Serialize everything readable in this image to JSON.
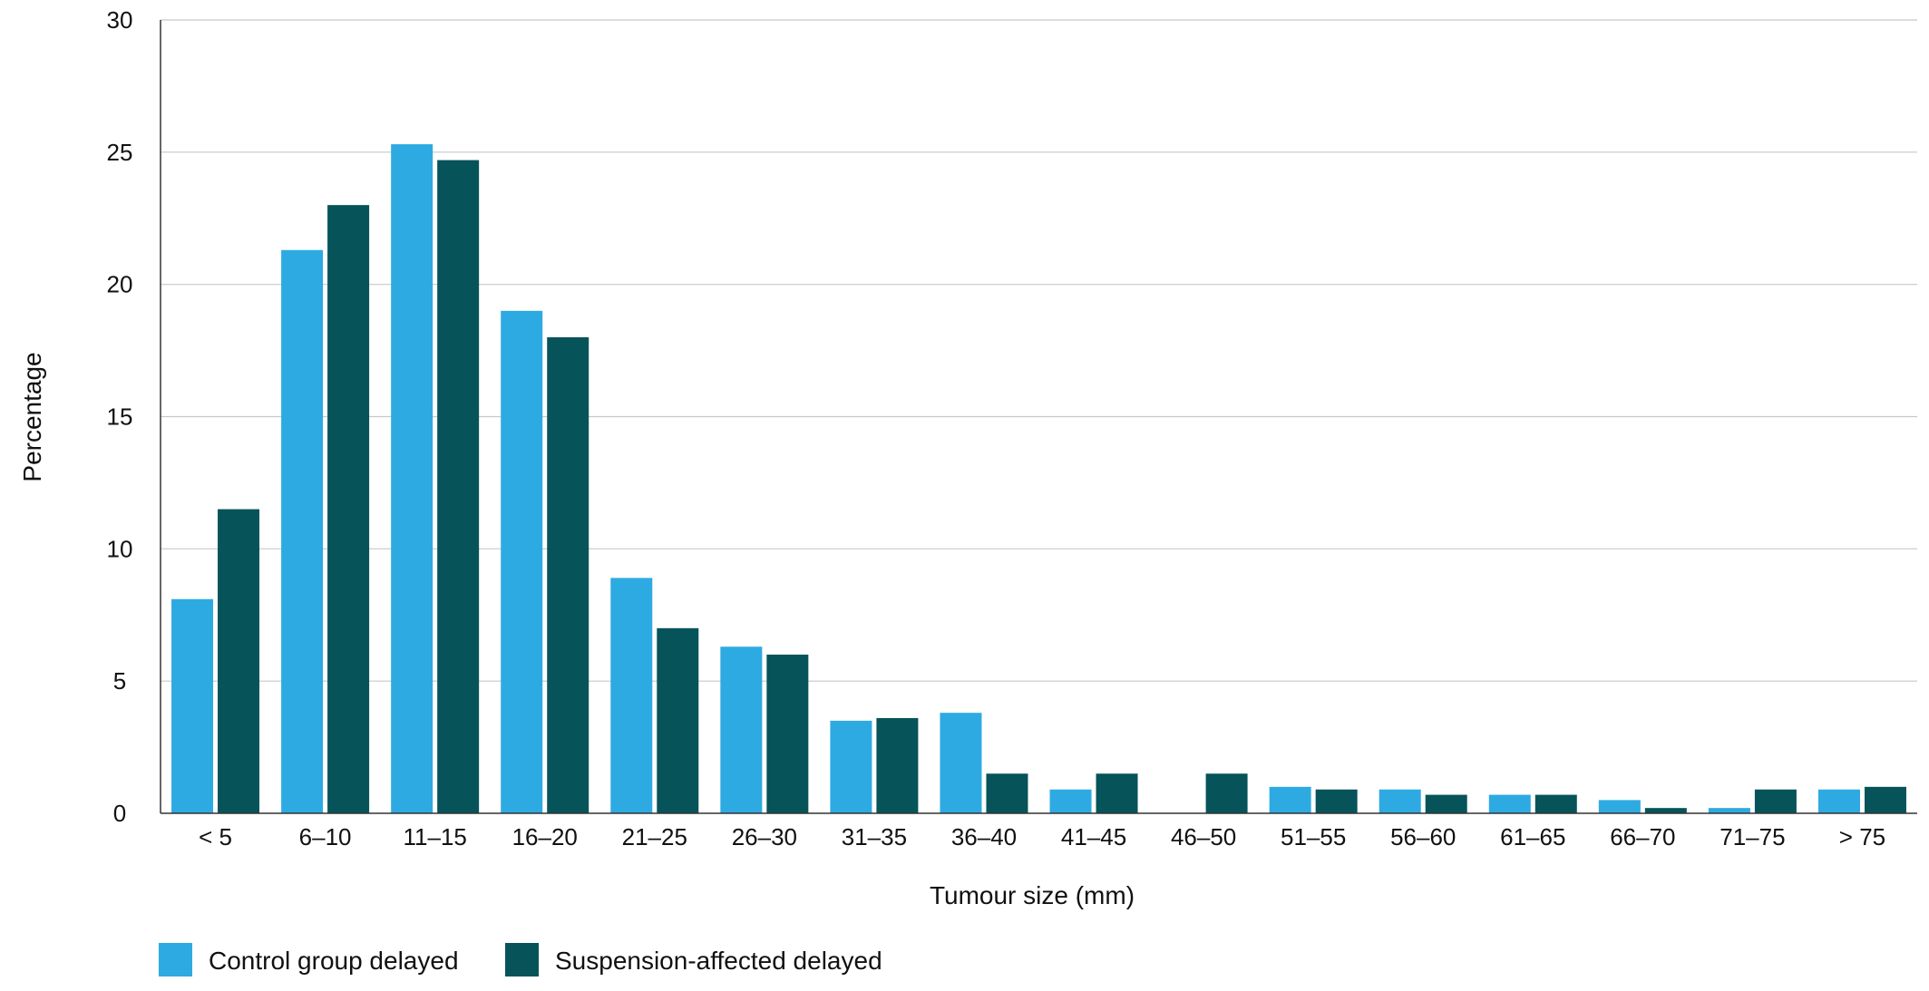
{
  "chart_data": {
    "type": "bar",
    "title": "",
    "xlabel": "Tumour size (mm)",
    "ylabel": "Percentage",
    "ylim": [
      0,
      30
    ],
    "yticks": [
      0,
      5,
      10,
      15,
      20,
      25,
      30
    ],
    "grid": true,
    "legend_position": "bottom-left",
    "categories": [
      "< 5",
      "6–10",
      "11–15",
      "16–20",
      "21–25",
      "26–30",
      "31–35",
      "36–40",
      "41–45",
      "46–50",
      "51–55",
      "56–60",
      "61–65",
      "66–70",
      "71–75",
      "> 75"
    ],
    "series": [
      {
        "name": "Control group delayed",
        "color": "#2eaae2",
        "values": [
          8.1,
          21.3,
          25.3,
          19.0,
          8.9,
          6.3,
          3.5,
          3.8,
          0.9,
          0.0,
          1.0,
          0.9,
          0.7,
          0.5,
          0.2,
          0.9
        ]
      },
      {
        "name": "Suspension-affected delayed",
        "color": "#065459",
        "values": [
          11.5,
          23.0,
          24.7,
          18.0,
          7.0,
          6.0,
          3.6,
          1.5,
          1.5,
          1.5,
          0.9,
          0.7,
          0.7,
          0.2,
          0.9,
          1.0
        ]
      }
    ]
  }
}
